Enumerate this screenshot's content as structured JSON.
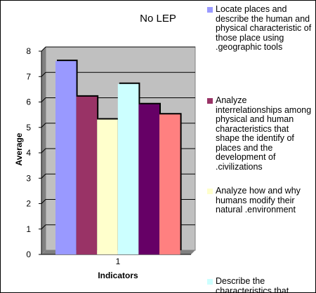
{
  "chart_data": {
    "type": "bar",
    "title": "No LEP",
    "xlabel": "Indicators",
    "ylabel": "Average",
    "categories": [
      "1"
    ],
    "ylim": [
      0,
      8
    ],
    "yticks": [
      "0",
      "1",
      "2",
      "3",
      "4",
      "5",
      "6",
      "7",
      "8"
    ],
    "grid": true,
    "legend_position": "right",
    "plot_background": "#c0c0c0",
    "series": [
      {
        "name": "Locate places and describe the human and physical characteristic of those place using .geographic tools",
        "values": [
          7.5
        ],
        "color": "#9999ff"
      },
      {
        "name": "Analyze interrelationships among physical and human characteristics that shape the identify of places and the development of .civilizations",
        "values": [
          6.1
        ],
        "color": "#993366"
      },
      {
        "name": "Analyze how and why humans modify their natural .environment",
        "values": [
          5.2
        ],
        "color": "#ffffcc"
      },
      {
        "name": "Describe the characteristics that",
        "values": [
          6.6
        ],
        "color": "#ccffff"
      },
      {
        "name": "",
        "values": [
          5.8
        ],
        "color": "#660066"
      },
      {
        "name": "",
        "values": [
          5.4
        ],
        "color": "#ff8080"
      }
    ]
  }
}
